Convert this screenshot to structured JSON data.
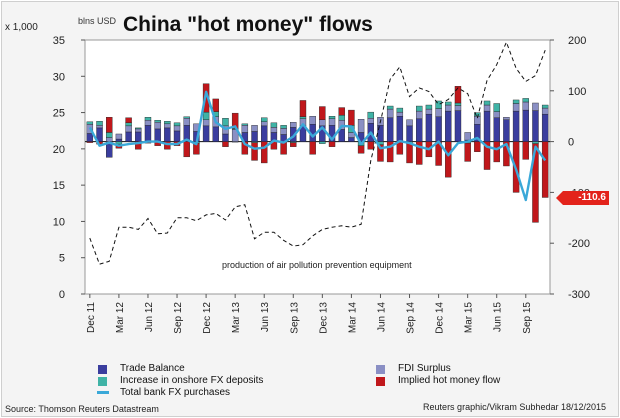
{
  "chart_data": {
    "type": "bar",
    "title": "China \"hot money\" flows",
    "units_label": "blns USD",
    "left_axis_label": "x 1,000",
    "y_left": {
      "min": 0,
      "max": 35,
      "ticks": [
        "0",
        "5",
        "10",
        "15",
        "20",
        "25",
        "30",
        "35"
      ]
    },
    "y_right": {
      "min": -300,
      "max": 200,
      "ticks": [
        "200",
        "100",
        "0",
        "-100",
        "-200",
        "-300"
      ]
    },
    "x_tick_labels": [
      "Dec 11",
      "Mar 12",
      "Jun 12",
      "Sep 12",
      "Dec 12",
      "Mar 13",
      "Jun 13",
      "Sep 13",
      "Dec 13",
      "Mar 14",
      "Jun 14",
      "Sep 14",
      "Dec 14",
      "Mar 15",
      "Jun 15",
      "Sep 15"
    ],
    "months": [
      "Dec 11",
      "Jan 12",
      "Feb 12",
      "Mar 12",
      "Apr 12",
      "May 12",
      "Jun 12",
      "Jul 12",
      "Aug 12",
      "Sep 12",
      "Oct 12",
      "Nov 12",
      "Dec 12",
      "Jan 13",
      "Feb 13",
      "Mar 13",
      "Apr 13",
      "May 13",
      "Jun 13",
      "Jul 13",
      "Aug 13",
      "Sep 13",
      "Oct 13",
      "Nov 13",
      "Dec 13",
      "Jan 14",
      "Feb 14",
      "Mar 14",
      "Apr 14",
      "May 14",
      "Jun 14",
      "Jul 14",
      "Aug 14",
      "Sep 14",
      "Oct 14",
      "Nov 14",
      "Dec 14",
      "Jan 15",
      "Feb 15",
      "Mar 15",
      "Apr 15",
      "May 15",
      "Jun 15",
      "Jul 15",
      "Aug 15",
      "Sep 15",
      "Oct 15",
      "Nov 15"
    ],
    "series": [
      {
        "name": "Trade Balance",
        "axis": "right",
        "color": "#3a3d9e",
        "values": [
          16,
          27,
          -31,
          5,
          19,
          19,
          32,
          25,
          27,
          21,
          32,
          20,
          31,
          29,
          15,
          -1,
          18,
          20,
          31,
          18,
          14,
          28,
          31,
          34,
          31,
          32,
          24,
          8,
          18,
          36,
          32,
          47,
          50,
          31,
          45,
          54,
          49,
          60,
          61,
          3,
          34,
          60,
          47,
          43,
          60,
          62,
          61,
          54
        ]
      },
      {
        "name": "FDI Surplus",
        "axis": "right",
        "color": "#8a8fc4",
        "values": [
          18,
          5,
          8,
          10,
          12,
          6,
          10,
          13,
          8,
          10,
          14,
          15,
          12,
          20,
          16,
          24,
          14,
          12,
          8,
          10,
          12,
          10,
          14,
          16,
          12,
          13,
          18,
          10,
          26,
          10,
          16,
          17,
          8,
          12,
          15,
          10,
          16,
          12,
          10,
          15,
          16,
          12,
          12,
          5,
          15,
          16,
          15,
          12
        ]
      },
      {
        "name": "Increase in onshore FX deposits",
        "axis": "right",
        "color": "#3fb3a6",
        "values": [
          5,
          8,
          10,
          -5,
          6,
          2,
          6,
          4,
          5,
          6,
          3,
          -3,
          15,
          10,
          15,
          2,
          3,
          -2,
          8,
          9,
          6,
          -2,
          4,
          0,
          -4,
          5,
          10,
          14,
          -8,
          12,
          -6,
          6,
          8,
          -4,
          10,
          8,
          15,
          6,
          5,
          -3,
          7,
          8,
          16,
          0,
          7,
          7,
          -4,
          6
        ]
      },
      {
        "name": "Implied hot money flow",
        "axis": "right",
        "color": "#c0171b",
        "values": [
          -2,
          -5,
          30,
          -8,
          10,
          -15,
          -3,
          -8,
          -15,
          -8,
          -30,
          -22,
          56,
          25,
          -10,
          30,
          -25,
          -35,
          -42,
          -15,
          -25,
          -8,
          32,
          -25,
          26,
          -10,
          15,
          30,
          -15,
          -15,
          -33,
          -40,
          -25,
          -38,
          -45,
          -30,
          -47,
          -70,
          33,
          -36,
          -20,
          -55,
          -40,
          -48,
          -100,
          -35,
          -155,
          -110
        ]
      },
      {
        "name": "Total bank FX purchases",
        "axis": "right",
        "color": "#3aa8d8",
        "style": "line",
        "values": [
          28,
          -8,
          -2,
          -8,
          -5,
          -3,
          0,
          0,
          -5,
          -5,
          4,
          -5,
          98,
          38,
          25,
          30,
          -5,
          -14,
          -12,
          2,
          -2,
          10,
          34,
          10,
          28,
          4,
          31,
          30,
          -5,
          18,
          -13,
          -10,
          1,
          -3,
          -10,
          -15,
          0,
          -27,
          -3,
          0,
          7,
          -10,
          -15,
          -5,
          -55,
          -115,
          -10,
          -37
        ]
      },
      {
        "name": "production of air pollution prevention equipment",
        "axis": "left",
        "style": "dashed",
        "values": [
          7.7,
          4.1,
          4.5,
          9.2,
          9.2,
          8.9,
          10.4,
          8.3,
          8.4,
          10.5,
          10.5,
          10.1,
          10.9,
          11.1,
          10.2,
          12.0,
          12.3,
          7.6,
          8.5,
          8.5,
          7.4,
          6.6,
          6.8,
          8.0,
          8.9,
          9.2,
          9.4,
          9.2,
          9.6,
          18.4,
          23.8,
          29.6,
          31.3,
          27.2,
          28.4,
          27.9,
          26.1,
          26.8,
          28.4,
          27.6,
          24.2,
          29.4,
          31.6,
          34.7,
          31.1,
          29.3,
          30.1,
          33.6
        ]
      }
    ],
    "annotation": "production of air pollution prevention equipment",
    "callout_value": "-110.6"
  },
  "legend": [
    {
      "label": "Trade Balance",
      "color": "#3a3d9e",
      "kind": "box"
    },
    {
      "label": "FDI Surplus",
      "color": "#8a8fc4",
      "kind": "box"
    },
    {
      "label": "Increase in onshore FX deposits",
      "color": "#3fb3a6",
      "kind": "box"
    },
    {
      "label": "Implied hot money flow",
      "color": "#c0171b",
      "kind": "box"
    },
    {
      "label": "Total bank FX purchases",
      "color": "#3aa8d8",
      "kind": "line"
    }
  ],
  "footer": {
    "source": "Source: Thomson Reuters Datastream",
    "credit": "Reuters graphic/Vikram Subhedar 18/12/2015"
  }
}
